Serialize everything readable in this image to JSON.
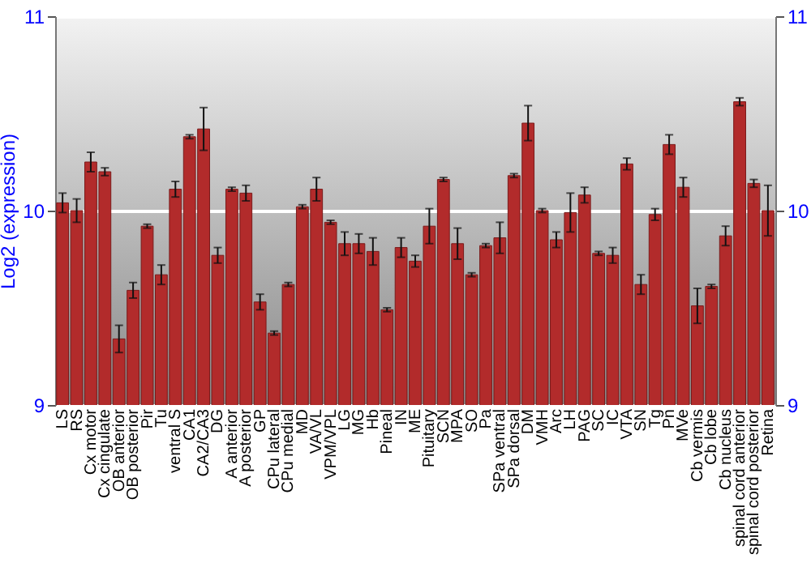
{
  "chart_data": {
    "type": "bar",
    "ylabel": "Log2 (expression)",
    "categories": [
      "LS",
      "RS",
      "Cx motor",
      "Cx cingulate",
      "OB anterior",
      "OB posterior",
      "Pir",
      "Tu",
      "ventral S",
      "CA1",
      "CA2/CA3",
      "DG",
      "A anterior",
      "A posterior",
      "GP",
      "CPu lateral",
      "CPu medial",
      "MD",
      "VA/VL",
      "VPM/VPL",
      "LG",
      "MG",
      "Hb",
      "Pineal",
      "IN",
      "ME",
      "Pituitary",
      "SCN",
      "MPA",
      "SO",
      "Pa",
      "SPa ventral",
      "SPa dorsal",
      "DM",
      "VMH",
      "Arc",
      "LH",
      "PAG",
      "SC",
      "IC",
      "VTA",
      "SN",
      "Tg",
      "Pn",
      "MVe",
      "Cb vermis",
      "Cb lobe",
      "Cb nucleus",
      "spinal cord anterior",
      "spinal cord posterior",
      "Retina"
    ],
    "values": [
      10.04,
      10.0,
      10.25,
      10.2,
      9.34,
      9.59,
      9.92,
      9.67,
      10.11,
      10.38,
      10.42,
      9.77,
      10.11,
      10.09,
      9.53,
      9.37,
      9.62,
      10.02,
      10.11,
      9.94,
      9.83,
      9.83,
      9.79,
      9.49,
      9.81,
      9.74,
      9.92,
      10.16,
      9.83,
      9.67,
      9.82,
      9.86,
      10.18,
      10.45,
      10.0,
      9.85,
      9.99,
      10.08,
      9.78,
      9.77,
      10.24,
      9.62,
      9.98,
      10.34,
      10.12,
      9.51,
      9.61,
      9.87,
      10.56,
      10.14,
      10.0
    ],
    "errors": [
      0.05,
      0.06,
      0.05,
      0.02,
      0.07,
      0.04,
      0.01,
      0.05,
      0.04,
      0.01,
      0.11,
      0.04,
      0.01,
      0.04,
      0.04,
      0.01,
      0.01,
      0.01,
      0.06,
      0.01,
      0.06,
      0.05,
      0.07,
      0.01,
      0.05,
      0.03,
      0.09,
      0.01,
      0.08,
      0.01,
      0.01,
      0.08,
      0.01,
      0.09,
      0.01,
      0.04,
      0.1,
      0.04,
      0.01,
      0.04,
      0.03,
      0.05,
      0.03,
      0.05,
      0.05,
      0.09,
      0.01,
      0.05,
      0.02,
      0.02,
      0.13
    ],
    "color": "#b22b2b",
    "ylim": [
      9,
      11
    ],
    "yticks": [
      9,
      10,
      11
    ],
    "y2lim": [
      9,
      11
    ],
    "y2ticks": [
      9,
      10,
      11
    ],
    "grid": "y"
  }
}
